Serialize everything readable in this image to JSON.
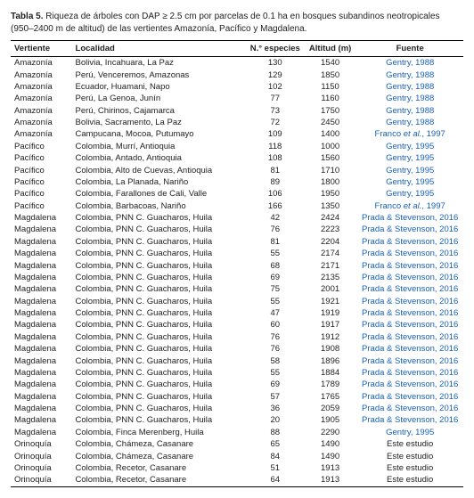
{
  "caption_label": "Tabla 5.",
  "caption_text": " Riqueza de árboles con DAP ≥ 2.5 cm por parcelas de 0.1 ha en bosques subandinos neotropicales (950–2400 m de altitud) de las vertientes Amazonía, Pacífico y Magdalena.",
  "columns": [
    "Vertiente",
    "Localidad",
    "N.° especies",
    "Altitud (m)",
    "Fuente"
  ],
  "link_color": "#1760b8",
  "rows": [
    {
      "v": "Amazonía",
      "l": "Bolivia, Incahuara, La Paz",
      "n": 130,
      "a": 1540,
      "f": "Gentry, 1988",
      "link": true
    },
    {
      "v": "Amazonía",
      "l": "Perú, Venceremos, Amazonas",
      "n": 129,
      "a": 1850,
      "f": "Gentry, 1988",
      "link": true
    },
    {
      "v": "Amazonía",
      "l": "Ecuador, Huamani, Napo",
      "n": 102,
      "a": 1150,
      "f": "Gentry, 1988",
      "link": true
    },
    {
      "v": "Amazonía",
      "l": "Perú, La Genoa, Junín",
      "n": 77,
      "a": 1160,
      "f": "Gentry, 1988",
      "link": true
    },
    {
      "v": "Amazonía",
      "l": "Perú, Chirinos, Cajamarca",
      "n": 73,
      "a": 1750,
      "f": "Gentry, 1988",
      "link": true
    },
    {
      "v": "Amazonía",
      "l": "Bolivia, Sacramento, La Paz",
      "n": 72,
      "a": 2450,
      "f": "Gentry, 1988",
      "link": true
    },
    {
      "v": "Amazonía",
      "l": "Campucana, Mocoa, Putumayo",
      "n": 109,
      "a": 1400,
      "f": "Franco et al., 1997",
      "link": true,
      "etal": true
    },
    {
      "v": "Pacífico",
      "l": "Colombia, Murrí, Antioquia",
      "n": 118,
      "a": 1000,
      "f": "Gentry, 1995",
      "link": true
    },
    {
      "v": "Pacífico",
      "l": "Colombia, Antado, Antioquia",
      "n": 108,
      "a": 1560,
      "f": "Gentry, 1995",
      "link": true
    },
    {
      "v": "Pacífico",
      "l": "Colombia, Alto de Cuevas, Antioquia",
      "n": 81,
      "a": 1710,
      "f": "Gentry, 1995",
      "link": true
    },
    {
      "v": "Pacífico",
      "l": "Colombia, La Planada, Nariño",
      "n": 89,
      "a": 1800,
      "f": "Gentry, 1995",
      "link": true
    },
    {
      "v": "Pacífico",
      "l": "Colombia, Farallones de Cali, Valle",
      "n": 106,
      "a": 1950,
      "f": "Gentry, 1995",
      "link": true
    },
    {
      "v": "Pacífico",
      "l": "Colombia, Barbacoas, Nariño",
      "n": 166,
      "a": 1350,
      "f": "Franco et al., 1997",
      "link": true,
      "etal": true
    },
    {
      "v": "Magdalena",
      "l": "Colombia, PNN C. Guacharos, Huila",
      "n": 42,
      "a": 2424,
      "f": "Prada & Stevenson, 2016",
      "link": true
    },
    {
      "v": "Magdalena",
      "l": "Colombia, PNN C. Guacharos, Huila",
      "n": 76,
      "a": 2223,
      "f": "Prada & Stevenson, 2016",
      "link": true
    },
    {
      "v": "Magdalena",
      "l": "Colombia, PNN C. Guacharos, Huila",
      "n": 81,
      "a": 2204,
      "f": "Prada & Stevenson, 2016",
      "link": true
    },
    {
      "v": "Magdalena",
      "l": "Colombia, PNN C. Guacharos, Huila",
      "n": 55,
      "a": 2174,
      "f": "Prada & Stevenson, 2016",
      "link": true
    },
    {
      "v": "Magdalena",
      "l": "Colombia, PNN C. Guacharos, Huila",
      "n": 68,
      "a": 2171,
      "f": "Prada & Stevenson, 2016",
      "link": true
    },
    {
      "v": "Magdalena",
      "l": "Colombia, PNN C. Guacharos, Huila",
      "n": 69,
      "a": 2135,
      "f": "Prada & Stevenson, 2016",
      "link": true
    },
    {
      "v": "Magdalena",
      "l": "Colombia, PNN C. Guacharos, Huila",
      "n": 75,
      "a": 2001,
      "f": "Prada & Stevenson, 2016",
      "link": true
    },
    {
      "v": "Magdalena",
      "l": "Colombia, PNN C. Guacharos, Huila",
      "n": 55,
      "a": 1921,
      "f": "Prada & Stevenson, 2016",
      "link": true
    },
    {
      "v": "Magdalena",
      "l": "Colombia, PNN C. Guacharos, Huila",
      "n": 47,
      "a": 1919,
      "f": "Prada & Stevenson, 2016",
      "link": true
    },
    {
      "v": "Magdalena",
      "l": "Colombia, PNN C. Guacharos, Huila",
      "n": 60,
      "a": 1917,
      "f": "Prada & Stevenson, 2016",
      "link": true
    },
    {
      "v": "Magdalena",
      "l": "Colombia, PNN C. Guacharos, Huila",
      "n": 76,
      "a": 1912,
      "f": "Prada & Stevenson, 2016",
      "link": true
    },
    {
      "v": "Magdalena",
      "l": "Colombia, PNN C. Guacharos, Huila",
      "n": 76,
      "a": 1908,
      "f": "Prada & Stevenson, 2016",
      "link": true
    },
    {
      "v": "Magdalena",
      "l": "Colombia, PNN C. Guacharos, Huila",
      "n": 58,
      "a": 1896,
      "f": "Prada & Stevenson, 2016",
      "link": true
    },
    {
      "v": "Magdalena",
      "l": "Colombia, PNN C. Guacharos, Huila",
      "n": 55,
      "a": 1884,
      "f": "Prada & Stevenson, 2016",
      "link": true
    },
    {
      "v": "Magdalena",
      "l": "Colombia, PNN C. Guacharos, Huila",
      "n": 69,
      "a": 1789,
      "f": "Prada & Stevenson, 2016",
      "link": true
    },
    {
      "v": "Magdalena",
      "l": "Colombia, PNN C. Guacharos, Huila",
      "n": 57,
      "a": 1765,
      "f": "Prada & Stevenson, 2016",
      "link": true
    },
    {
      "v": "Magdalena",
      "l": "Colombia, PNN C. Guacharos, Huila",
      "n": 36,
      "a": 2059,
      "f": "Prada & Stevenson, 2016",
      "link": true
    },
    {
      "v": "Magdalena",
      "l": "Colombia, PNN C. Guacharos, Huila",
      "n": 20,
      "a": 1905,
      "f": "Prada & Stevenson, 2016",
      "link": true
    },
    {
      "v": "Magdalena",
      "l": "Colombia, Finca Merenberg, Huila",
      "n": 88,
      "a": 2290,
      "f": "Gentry, 1995",
      "link": true
    },
    {
      "v": "Orinoquía",
      "l": "Colombia, Chámeza, Casanare",
      "n": 65,
      "a": 1490,
      "f": "Este estudio",
      "link": false
    },
    {
      "v": "Orinoquía",
      "l": "Colombia, Chámeza, Casanare",
      "n": 84,
      "a": 1490,
      "f": "Este estudio",
      "link": false
    },
    {
      "v": "Orinoquía",
      "l": "Colombia, Recetor, Casanare",
      "n": 51,
      "a": 1913,
      "f": "Este estudio",
      "link": false
    },
    {
      "v": "Orinoquía",
      "l": "Colombia, Recetor, Casanare",
      "n": 64,
      "a": 1913,
      "f": "Este estudio",
      "link": false
    }
  ]
}
